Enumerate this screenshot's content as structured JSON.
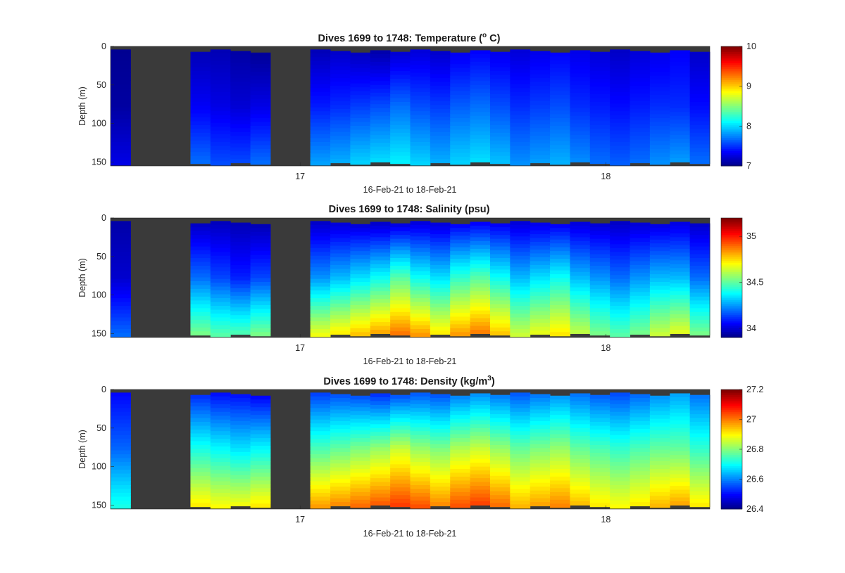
{
  "chart_data": [
    {
      "type": "heatmap",
      "title_prefix": "Dives 1699 to 1748: Temperature (",
      "title_sup": "o",
      "title_suffix": " C)",
      "ylabel": "Depth (m)",
      "xlabel": "16-Feb-21 to 18-Feb-21",
      "yticks": [
        "0",
        "50",
        "100",
        "150"
      ],
      "ytick_values": [
        0,
        50,
        100,
        150
      ],
      "ylim": [
        0,
        155
      ],
      "xticks": [
        "17",
        "18"
      ],
      "xtick_values": [
        17,
        18
      ],
      "xlim": [
        16.38,
        18.34
      ],
      "colorbar_ticks": [
        "7",
        "8",
        "9",
        "10"
      ],
      "colorbar_tick_values": [
        7,
        8,
        9,
        10
      ],
      "clim": [
        7,
        10
      ],
      "colormap": "jet",
      "nodata_color": "#3a3a3a",
      "profile_surface": [
        5,
        5,
        5,
        3,
        5,
        4,
        5,
        5,
        5,
        5,
        5,
        5,
        5,
        5,
        5,
        5,
        5,
        5,
        5,
        5,
        5,
        5,
        5,
        5,
        5,
        5,
        5,
        5,
        5,
        5,
        5,
        5,
        5,
        5,
        5,
        5,
        5,
        5,
        5,
        5,
        5,
        5,
        5,
        5,
        5,
        5,
        5,
        5,
        5,
        5
      ],
      "value_rows": [
        [
          7.05,
          7.05,
          7.1,
          7.1,
          7.15,
          7.15,
          7.1,
          7.05,
          7.1,
          7.1,
          7.15,
          7.2,
          7.15,
          7.1,
          7.2,
          7.25,
          7.2,
          7.3,
          7.35,
          7.3,
          7.25,
          7.3,
          7.35,
          7.3,
          7.25,
          7.2,
          7.25,
          7.3,
          7.35,
          7.2
        ],
        [
          7.1,
          7.15,
          7.2,
          7.3,
          7.35,
          7.3,
          7.25,
          7.3,
          7.4,
          7.5,
          7.45,
          7.5,
          7.55,
          7.6,
          7.7,
          7.6,
          7.55,
          7.65,
          7.7,
          7.6,
          7.5,
          7.55,
          7.6,
          7.5,
          7.45,
          7.4,
          7.45,
          7.5,
          7.5,
          7.4
        ],
        [
          7.3,
          7.5,
          7.7,
          7.8,
          7.7,
          7.6,
          7.6,
          7.7,
          7.8,
          7.9,
          7.85,
          7.9,
          8.0,
          8.05,
          8.1,
          8.0,
          7.9,
          8.0,
          8.05,
          7.95,
          7.8,
          7.85,
          7.9,
          7.8,
          7.7,
          7.65,
          7.7,
          7.8,
          7.85,
          7.7
        ]
      ]
    },
    {
      "type": "heatmap",
      "title": "Dives 1699 to 1748: Salinity (psu)",
      "ylabel": "Depth (m)",
      "xlabel": "16-Feb-21 to 18-Feb-21",
      "yticks": [
        "0",
        "50",
        "100",
        "150"
      ],
      "ytick_values": [
        0,
        50,
        100,
        150
      ],
      "ylim": [
        0,
        155
      ],
      "xticks": [
        "17",
        "18"
      ],
      "xtick_values": [
        17,
        18
      ],
      "xlim": [
        16.38,
        18.34
      ],
      "colorbar_ticks": [
        "34",
        "34.5",
        "35"
      ],
      "colorbar_tick_values": [
        34,
        34.5,
        35
      ],
      "clim": [
        33.9,
        35.2
      ],
      "colormap": "jet",
      "nodata_color": "#3a3a3a",
      "value_rows": [
        [
          33.95,
          33.95,
          33.95,
          33.96,
          33.97,
          33.97,
          33.96,
          33.95,
          33.96,
          33.97,
          33.98,
          33.99,
          33.98,
          33.97,
          33.98,
          34.0,
          33.99,
          34.02,
          34.03,
          34.02,
          34.0,
          34.01,
          34.02,
          34.0,
          33.99,
          33.98,
          33.99,
          34.0,
          34.01,
          33.98
        ],
        [
          34.0,
          34.05,
          34.1,
          34.15,
          34.2,
          34.15,
          34.1,
          34.15,
          34.2,
          34.3,
          34.25,
          34.3,
          34.35,
          34.4,
          34.5,
          34.4,
          34.35,
          34.45,
          34.5,
          34.4,
          34.3,
          34.35,
          34.4,
          34.3,
          34.25,
          34.2,
          34.25,
          34.3,
          34.3,
          34.2
        ],
        [
          34.2,
          34.4,
          34.55,
          34.65,
          34.55,
          34.5,
          34.5,
          34.55,
          34.65,
          34.75,
          34.7,
          34.75,
          34.8,
          34.85,
          34.9,
          34.85,
          34.75,
          34.85,
          34.9,
          34.8,
          34.65,
          34.7,
          34.75,
          34.65,
          34.55,
          34.5,
          34.55,
          34.65,
          34.7,
          34.55
        ]
      ]
    },
    {
      "type": "heatmap",
      "title_prefix": "Dives 1699 to 1748: Density (kg/m",
      "title_sup": "3",
      "title_suffix": ")",
      "ylabel": "Depth (m)",
      "xlabel": "16-Feb-21 to 18-Feb-21",
      "yticks": [
        "0",
        "50",
        "100",
        "150"
      ],
      "ytick_values": [
        0,
        50,
        100,
        150
      ],
      "ylim": [
        0,
        155
      ],
      "xticks": [
        "17",
        "18"
      ],
      "xtick_values": [
        17,
        18
      ],
      "xlim": [
        16.38,
        18.34
      ],
      "colorbar_ticks": [
        "26.4",
        "26.6",
        "26.8",
        "27",
        "27.2"
      ],
      "colorbar_tick_values": [
        26.4,
        26.6,
        26.8,
        27.0,
        27.2
      ],
      "clim": [
        26.4,
        27.2
      ],
      "colormap": "jet",
      "nodata_color": "#3a3a3a",
      "value_rows": [
        [
          26.5,
          26.5,
          26.5,
          26.52,
          26.52,
          26.5,
          26.5,
          26.48,
          26.5,
          26.52,
          26.54,
          26.55,
          26.54,
          26.52,
          26.54,
          26.56,
          26.55,
          26.58,
          26.6,
          26.58,
          26.56,
          26.58,
          26.6,
          26.58,
          26.56,
          26.55,
          26.57,
          26.6,
          26.62,
          26.58
        ],
        [
          26.58,
          26.62,
          26.66,
          26.7,
          26.72,
          26.7,
          26.68,
          26.7,
          26.74,
          26.78,
          26.76,
          26.78,
          26.8,
          26.82,
          26.86,
          26.82,
          26.8,
          26.84,
          26.86,
          26.82,
          26.78,
          26.8,
          26.82,
          26.78,
          26.76,
          26.74,
          26.76,
          26.78,
          26.78,
          26.74
        ],
        [
          26.72,
          26.82,
          26.9,
          26.96,
          26.92,
          26.9,
          26.9,
          26.92,
          26.96,
          27.0,
          26.98,
          27.0,
          27.02,
          27.04,
          27.06,
          27.04,
          27.0,
          27.04,
          27.06,
          27.02,
          26.96,
          26.98,
          27.0,
          26.96,
          26.92,
          26.9,
          26.92,
          26.96,
          26.98,
          26.92
        ]
      ]
    }
  ]
}
